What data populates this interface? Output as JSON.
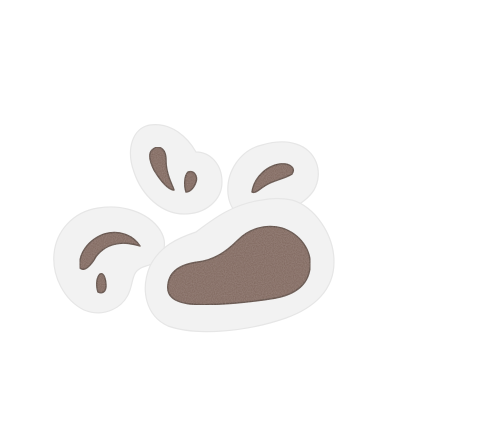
{
  "illustration": {
    "icon": "mud-splash-sticker-icon",
    "colors": {
      "background": "#ffffff",
      "sticker_border": "#f2f2f2",
      "sticker_border_edge": "#e6e6e6",
      "mud_fill": "#7b6258",
      "mud_outline": "#4e3b33",
      "mud_texture": "#8c7268"
    }
  }
}
